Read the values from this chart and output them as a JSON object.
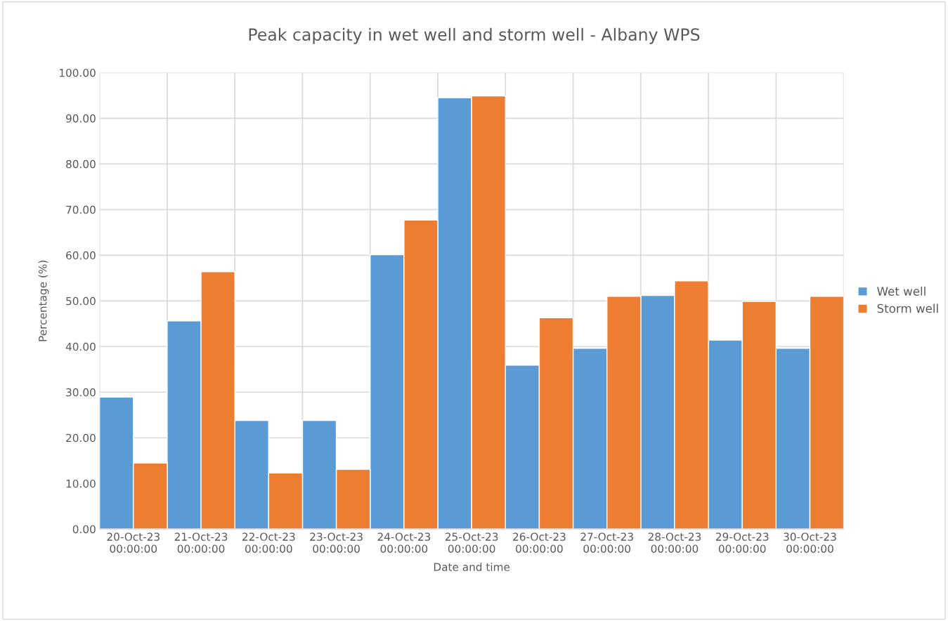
{
  "chart_data": {
    "type": "bar",
    "title": "Peak capacity in wet well and storm well - Albany WPS",
    "xlabel": "Date and time",
    "ylabel": "Percentage (%)",
    "categories": [
      "20-Oct-23\n00:00:00",
      "21-Oct-23\n00:00:00",
      "22-Oct-23\n00:00:00",
      "23-Oct-23\n00:00:00",
      "24-Oct-23\n00:00:00",
      "25-Oct-23\n00:00:00",
      "26-Oct-23\n00:00:00",
      "27-Oct-23\n00:00:00",
      "28-Oct-23\n00:00:00",
      "29-Oct-23\n00:00:00",
      "30-Oct-23\n00:00:00"
    ],
    "series": [
      {
        "name": "Wet well",
        "color": "#5b9bd5",
        "values": [
          28.9,
          45.6,
          23.8,
          23.8,
          60.1,
          94.5,
          35.9,
          39.6,
          51.2,
          41.4,
          39.6
        ]
      },
      {
        "name": "Storm well",
        "color": "#ed7d31",
        "values": [
          14.5,
          56.4,
          12.3,
          13.1,
          67.7,
          94.9,
          46.3,
          51.0,
          54.4,
          49.9,
          51.0
        ]
      }
    ],
    "ylim": [
      0,
      100
    ],
    "yticks": [
      {
        "value": 0,
        "label": "0.00"
      },
      {
        "value": 10,
        "label": "10.00"
      },
      {
        "value": 20,
        "label": "20.00"
      },
      {
        "value": 30,
        "label": "30.00"
      },
      {
        "value": 40,
        "label": "40.00"
      },
      {
        "value": 50,
        "label": "50.00"
      },
      {
        "value": 60,
        "label": "60.00"
      },
      {
        "value": 70,
        "label": "70.00"
      },
      {
        "value": 80,
        "label": "80.00"
      },
      {
        "value": 90,
        "label": "90.00"
      },
      {
        "value": 100,
        "label": "100.00"
      }
    ],
    "grid": true,
    "legend": "right"
  }
}
